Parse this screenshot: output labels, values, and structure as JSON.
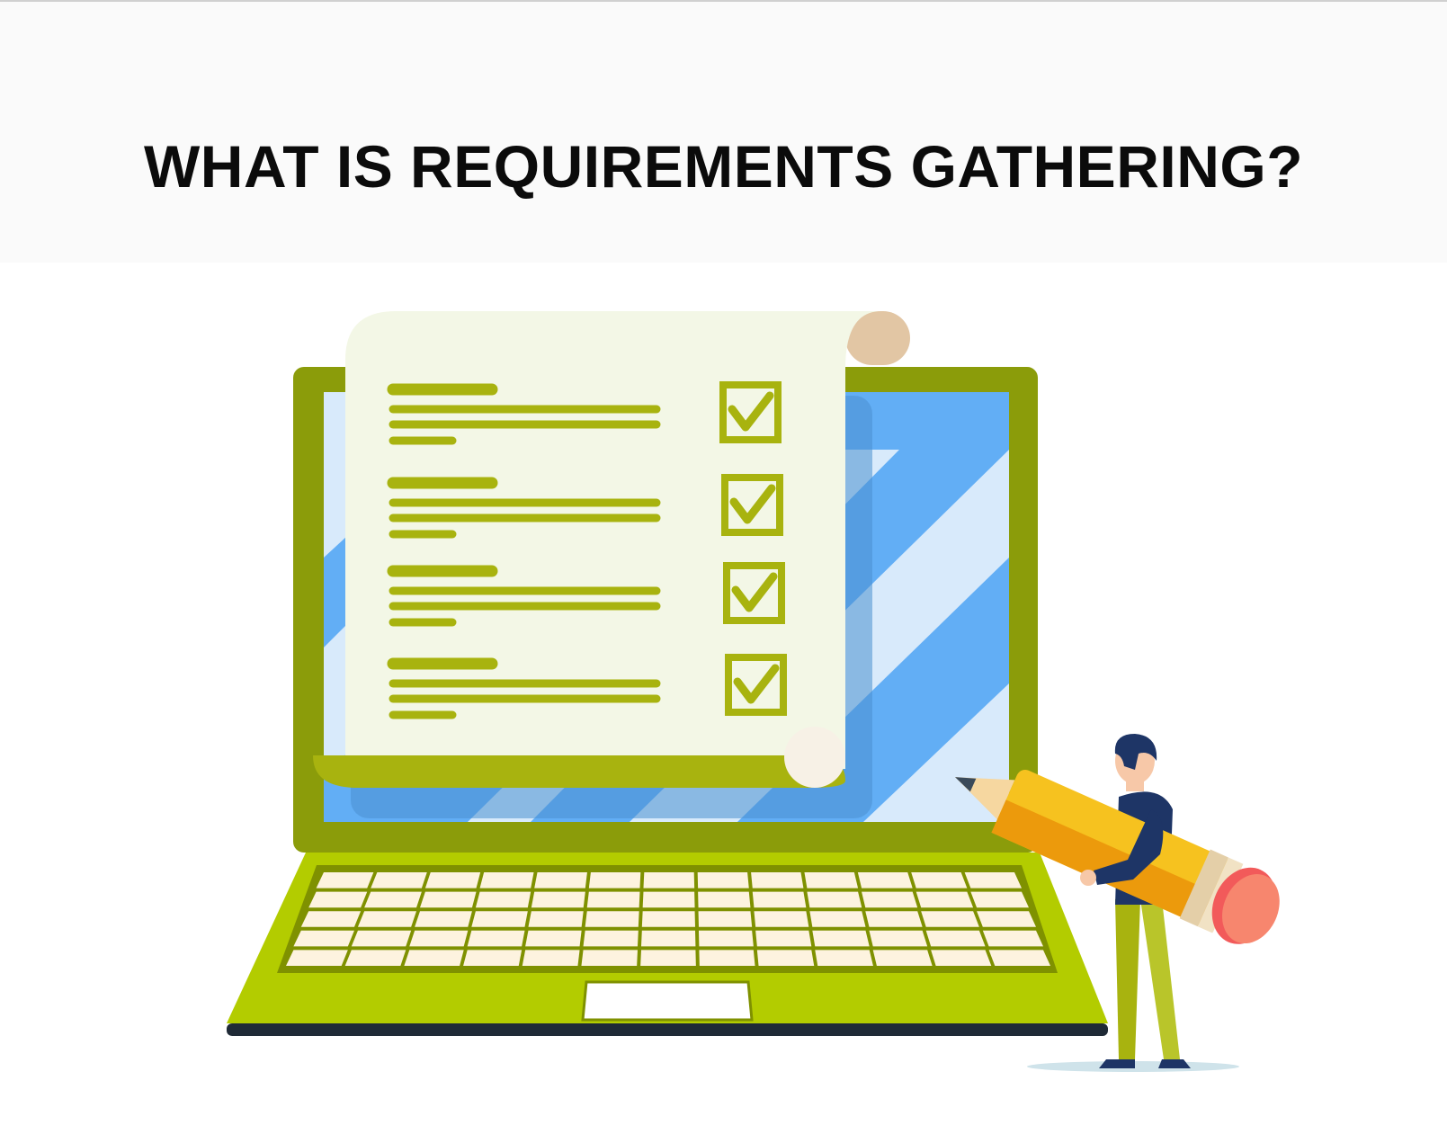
{
  "header": {
    "title": "WHAT IS REQUIREMENTS GATHERING?"
  },
  "illustration": {
    "subject": "laptop with checklist document and person holding pencil",
    "checklist": {
      "items": [
        {
          "checked": true
        },
        {
          "checked": true
        },
        {
          "checked": true
        },
        {
          "checked": true
        }
      ]
    }
  },
  "colors": {
    "laptop_frame": "#8b9c0a",
    "laptop_base": "#b3cc00",
    "screen_blue": "#62aef5",
    "screen_light": "#d8eafb",
    "document_paper": "#f3f7e6",
    "checklist_olive": "#a8b30f",
    "keyboard_keys": "#fdf3df",
    "pencil_yellow": "#f6c21f",
    "pencil_eraser": "#f7866e",
    "person_navy": "#1e3566"
  }
}
